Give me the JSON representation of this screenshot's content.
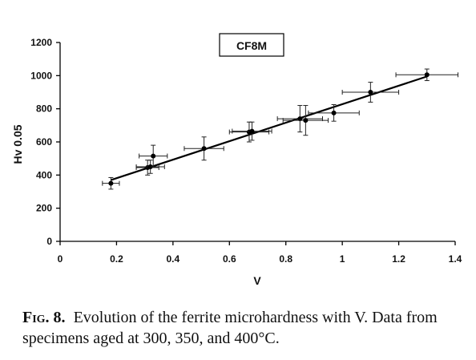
{
  "chart_data": {
    "type": "scatter",
    "title": "CF8M",
    "xlabel": "V",
    "ylabel": "Hv 0.05",
    "xlim": [
      0,
      1.4
    ],
    "ylim": [
      0,
      1200
    ],
    "x_ticks": [
      0,
      0.2,
      0.4,
      0.6,
      0.8,
      1,
      1.2,
      1.4
    ],
    "x_tick_labels": [
      "0",
      "0.2",
      "0.4",
      "0.6",
      "0.8",
      "1",
      "1.2",
      "1.4"
    ],
    "y_ticks": [
      0,
      200,
      400,
      600,
      800,
      1000,
      1200
    ],
    "y_tick_labels": [
      "0",
      "200",
      "400",
      "600",
      "800",
      "1000",
      "1200"
    ],
    "grid": false,
    "points": [
      {
        "x": 0.18,
        "y": 350,
        "xerr": 0.03,
        "yerr": 35
      },
      {
        "x": 0.31,
        "y": 445,
        "xerr": 0.04,
        "yerr": 45
      },
      {
        "x": 0.32,
        "y": 450,
        "xerr": 0.05,
        "yerr": 40
      },
      {
        "x": 0.33,
        "y": 515,
        "xerr": 0.05,
        "yerr": 65
      },
      {
        "x": 0.51,
        "y": 560,
        "xerr": 0.07,
        "yerr": 70
      },
      {
        "x": 0.67,
        "y": 660,
        "xerr": 0.07,
        "yerr": 60
      },
      {
        "x": 0.68,
        "y": 665,
        "xerr": 0.07,
        "yerr": 55
      },
      {
        "x": 0.85,
        "y": 740,
        "xerr": 0.08,
        "yerr": 80
      },
      {
        "x": 0.87,
        "y": 730,
        "xerr": 0.08,
        "yerr": 90
      },
      {
        "x": 0.97,
        "y": 775,
        "xerr": 0.09,
        "yerr": 50
      },
      {
        "x": 1.1,
        "y": 900,
        "xerr": 0.1,
        "yerr": 60
      },
      {
        "x": 1.3,
        "y": 1005,
        "xerr": 0.11,
        "yerr": 35
      }
    ],
    "fit_line": {
      "x": [
        0.18,
        1.3
      ],
      "y": [
        370,
        995
      ]
    }
  },
  "caption": {
    "label": "Fig. 8.",
    "text": "Evolution of the ferrite microhardness with V. Data from specimens aged at 300, 350, and 400°C."
  }
}
